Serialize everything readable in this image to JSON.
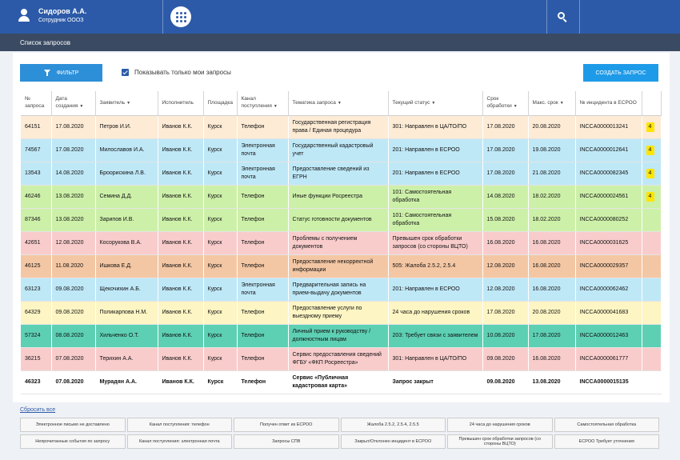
{
  "header": {
    "user_name": "Сидоров А.А.",
    "user_role": "Сотрудник ОООЗ"
  },
  "subheader": {
    "title": "Список запросов"
  },
  "toolbar": {
    "filter_label": "ФИЛЬТР",
    "only_mine_label": "Показывать только мои запросы",
    "only_mine_checked": true,
    "create_label": "СОЗДАТЬ ЗАПРОС"
  },
  "table": {
    "columns": [
      {
        "label": "№ запроса",
        "sortable": false
      },
      {
        "label": "Дата создания",
        "sortable": true
      },
      {
        "label": "Заявитель",
        "sortable": true
      },
      {
        "label": "Исполнитель",
        "sortable": false
      },
      {
        "label": "Площадка",
        "sortable": false
      },
      {
        "label": "Канал поступления",
        "sortable": true
      },
      {
        "label": "Тематика запроса",
        "sortable": true
      },
      {
        "label": "Текущий статус",
        "sortable": true
      },
      {
        "label": "Срок обработки",
        "sortable": true
      },
      {
        "label": "Макс. срок",
        "sortable": true
      },
      {
        "label": "№ инцидента в ЕСРОО",
        "sortable": false
      },
      {
        "label": "",
        "sortable": false
      }
    ],
    "rows": [
      {
        "id": "64151",
        "date": "17.08.2020",
        "applicant": "Петров И.И.",
        "executor": "Иванов К.К.",
        "site": "Курск",
        "channel": "Телефон",
        "topic": "Государственная регистрация права / Единая процедура",
        "status": "301: Направлен в ЦА/ТО/ПО",
        "term": "17.08.2020",
        "max_term": "20.08.2020",
        "incident": "INCCA0000013241",
        "badge": "4",
        "color": "#fdebd5"
      },
      {
        "id": "74567",
        "date": "17.08.2020",
        "applicant": "Милославов И.А.",
        "executor": "Иванов К.К.",
        "site": "Курск",
        "channel": "Электронная почта",
        "topic": "Государственный кадастровый учет",
        "status": "201: Направлен в ЕСРОО",
        "term": "17.08.2020",
        "max_term": "19.08.2020",
        "incident": "INCCA0000012641",
        "badge": "4",
        "color": "#bfe8f7"
      },
      {
        "id": "13543",
        "date": "14.08.2020",
        "applicant": "Броорискина Л.В.",
        "executor": "Иванов К.К.",
        "site": "Курск",
        "channel": "Электронная почта",
        "topic": "Предоставление сведений из ЕГРН",
        "status": "201: Направлен в ЕСРОО",
        "term": "17.08.2020",
        "max_term": "21.08.2020",
        "incident": "INCCA0000082345",
        "badge": "4",
        "color": "#bfe8f7"
      },
      {
        "id": "46246",
        "date": "13.08.2020",
        "applicant": "Семина Д.Д.",
        "executor": "Иванов К.К.",
        "site": "Курск",
        "channel": "Телефон",
        "topic": "Иные функции Росреестра",
        "status": "101: Самостоятельная обработка",
        "term": "14.08.2020",
        "max_term": "18.02.2020",
        "incident": "INCCA0000024561",
        "badge": "4",
        "color": "#cdf0a9"
      },
      {
        "id": "87346",
        "date": "13.08.2020",
        "applicant": "Зарипов И.В.",
        "executor": "Иванов К.К.",
        "site": "Курск",
        "channel": "Телефон",
        "topic": "Статус готовности документов",
        "status": "101: Самостоятельная обработка",
        "term": "15.08.2020",
        "max_term": "18.02.2020",
        "incident": "INCCA0000080252",
        "badge": "",
        "color": "#cdf0a9"
      },
      {
        "id": "42651",
        "date": "12.08.2020",
        "applicant": "Косорукова В.А.",
        "executor": "Иванов К.К.",
        "site": "Курск",
        "channel": "Телефон",
        "topic": "Проблемы с получением документов",
        "status": "Превышен срок обработки запросов (со стороны ВЦТО)",
        "term": "16.08.2020",
        "max_term": "16.08.2020",
        "incident": "INCCA0000031625",
        "badge": "",
        "color": "#f9cccc"
      },
      {
        "id": "46125",
        "date": "11.08.2020",
        "applicant": "Ишкова Е.Д.",
        "executor": "Иванов К.К.",
        "site": "Курск",
        "channel": "Телефон",
        "topic": "Предоставление некорректной информации",
        "status": "505: Жалоба 2.5.2, 2.5.4",
        "term": "12.08.2020",
        "max_term": "16.08.2020",
        "incident": "INCCA0000029357",
        "badge": "",
        "color": "#f4c7a4"
      },
      {
        "id": "63123",
        "date": "09.08.2020",
        "applicant": "Щекочихин А.Б.",
        "executor": "Иванов К.К.",
        "site": "Курск",
        "channel": "Электронная почта",
        "topic": "Предварительная запись на прием-выдачу документов",
        "status": "201: Направлен в ЕСРОО",
        "term": "12.08.2020",
        "max_term": "16.08.2020",
        "incident": "INCCA0000062462",
        "badge": "",
        "color": "#bfe8f7"
      },
      {
        "id": "64329",
        "date": "09.08.2020",
        "applicant": "Поликарпова Н.М.",
        "executor": "Иванов К.К.",
        "site": "Курск",
        "channel": "Телефон",
        "topic": "Предоставление услуги по выездному приему",
        "status": "24 часа до нарушения сроков",
        "term": "17.08.2020",
        "max_term": "20.08.2020",
        "incident": "INCCA0000041683",
        "badge": "",
        "color": "#fdf5c3"
      },
      {
        "id": "57324",
        "date": "08.08.2020",
        "applicant": "Хильченко О.Т.",
        "executor": "Иванов К.К.",
        "site": "Курск",
        "channel": "Телефон",
        "topic": "Личный прием к руководству / должностным лицам",
        "status": "203: Требует связи с заявителем",
        "term": "10.08.2020",
        "max_term": "17.08.2020",
        "incident": "INCCA0000012463",
        "badge": "",
        "color": "#5dd0b4"
      },
      {
        "id": "36215",
        "date": "07.08.2020",
        "applicant": "Терихин А.А.",
        "executor": "Иванов К.К.",
        "site": "Курск",
        "channel": "Телефон",
        "topic": "Сервис предоставления сведений ФГБУ «ФКП Росреестра»",
        "status": "301: Направлен в ЦА/ТО/ПО",
        "term": "09.08.2020",
        "max_term": "16.08.2020",
        "incident": "INCCA0000061777",
        "badge": "",
        "color": "#f9cccc"
      },
      {
        "id": "46323",
        "date": "07.08.2020",
        "applicant": "Мурадян А.А.",
        "executor": "Иванов К.К.",
        "site": "Курск",
        "channel": "Телефон",
        "topic": "Сервис «Публичная кадастровая карта»",
        "status": "Запрос закрыт",
        "term": "09.08.2020",
        "max_term": "13.08.2020",
        "incident": "INCCA0000015135",
        "badge": "",
        "color": "#ffffff",
        "bold": true
      }
    ]
  },
  "footer": {
    "reset_label": "Сбросить все",
    "legend": [
      "Электронное письмо не доставлено",
      "Канал поступления: телефон",
      "Получен ответ из ЕСРОО",
      "Жалоба 2.5.2, 2.5.4, 2.5.5",
      "24 часа до нарушения сроков",
      "Самостоятельная обработка",
      "Непрочитанные события по запросу",
      "Канал поступления: электронная почта",
      "Запросы СПВ",
      "Закрыт/Отклонен инцидент в ЕСРОО",
      "Превышен срок обработки запросов (со стороны ВЦТО)",
      "ЕСРОО Требует уточнения"
    ]
  }
}
